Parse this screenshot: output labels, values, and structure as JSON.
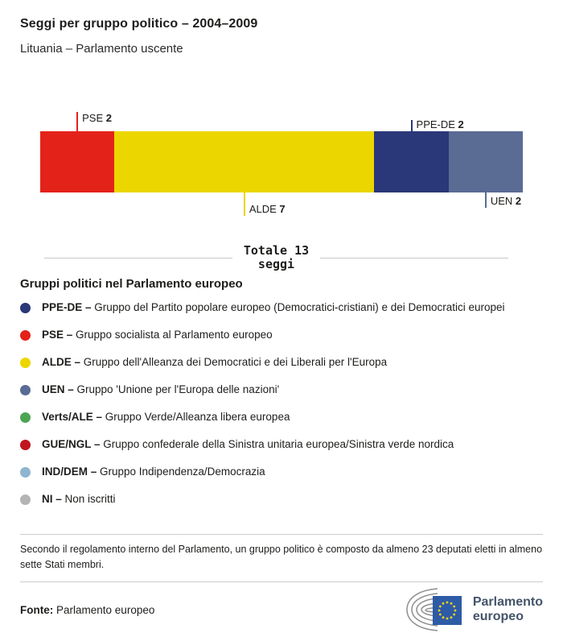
{
  "header": {
    "title": "Seggi per gruppo politico – 2004–2009",
    "subtitle": "Lituania – Parlamento uscente"
  },
  "chart_data": {
    "type": "bar",
    "stacked": true,
    "title": "Seggi per gruppo politico – 2004–2009",
    "subtitle": "Lituania – Parlamento uscente",
    "categories": [
      "PSE",
      "ALDE",
      "PPE-DE",
      "UEN"
    ],
    "values": [
      2,
      7,
      2,
      2
    ],
    "total_seats": 13,
    "total_label": "Totale 13 seggi",
    "segments": [
      {
        "group": "PSE",
        "seats": 2,
        "color": "#e32219",
        "callout": "above"
      },
      {
        "group": "ALDE",
        "seats": 7,
        "color": "#ecd600",
        "callout": "below"
      },
      {
        "group": "PPE-DE",
        "seats": 2,
        "color": "#2a3778",
        "callout": "above"
      },
      {
        "group": "UEN",
        "seats": 2,
        "color": "#5a6b94",
        "callout": "below"
      }
    ]
  },
  "total": {
    "line1": "Totale 13",
    "line2": "seggi"
  },
  "legend": {
    "heading": "Gruppi politici nel Parlamento europeo",
    "items": [
      {
        "name": "PPE-DE –",
        "desc": "Gruppo del Partito popolare europeo (Democratici-cristiani) e dei Democratici europei",
        "color": "#2a3778"
      },
      {
        "name": "PSE –",
        "desc": "Gruppo socialista al Parlamento europeo",
        "color": "#e32219"
      },
      {
        "name": "ALDE –",
        "desc": "Gruppo dell'Alleanza dei Democratici e dei Liberali per l'Europa",
        "color": "#ecd600"
      },
      {
        "name": "UEN –",
        "desc": "Gruppo 'Unione per l'Europa delle nazioni'",
        "color": "#5a6b94"
      },
      {
        "name": "Verts/ALE –",
        "desc": "Gruppo Verde/Alleanza libera europea",
        "color": "#4da554"
      },
      {
        "name": "GUE/NGL –",
        "desc": "Gruppo confederale della Sinistra unitaria europea/Sinistra verde nordica",
        "color": "#c0161d"
      },
      {
        "name": "IND/DEM –",
        "desc": "Gruppo Indipendenza/Democrazia",
        "color": "#8fb5cf"
      },
      {
        "name": "NI –",
        "desc": "Non iscritti",
        "color": "#b4b4b4"
      }
    ]
  },
  "footnote": "Secondo il regolamento interno del Parlamento, un gruppo politico è composto da almeno 23 deputati eletti in almeno sette Stati membri.",
  "source": {
    "label": "Fonte:",
    "value": "Parlamento europeo"
  },
  "logo": {
    "line1": "Parlamento",
    "line2": "europeo",
    "eu_blue": "#2e5ba6",
    "star_yellow": "#ffd617"
  }
}
